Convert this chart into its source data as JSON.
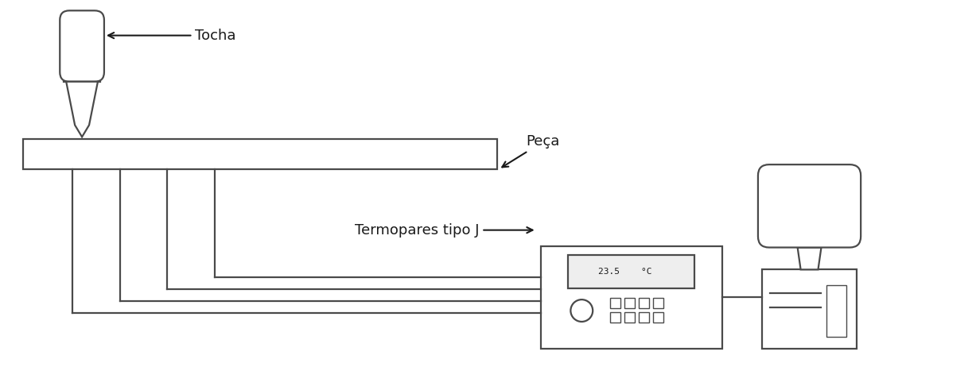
{
  "bg_color": "#ffffff",
  "line_color": "#4a4a4a",
  "text_color": "#1a1a1a",
  "fig_width": 12.27,
  "fig_height": 4.62,
  "label_tocha": "Tocha",
  "label_peca": "Peça",
  "label_termopares": "Termopares tipo J",
  "label_display": "23.5    °C",
  "font_size_labels": 13
}
